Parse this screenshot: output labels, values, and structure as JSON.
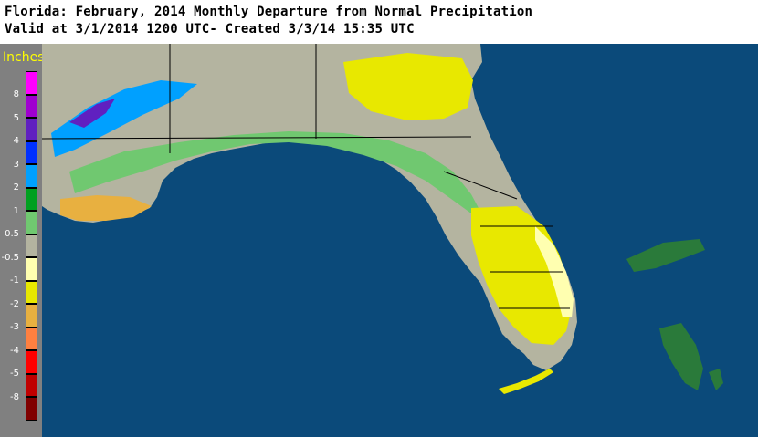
{
  "header": {
    "title": "Florida: February, 2014 Monthly Departure from Normal Precipitation",
    "subtitle": "Valid at 3/1/2014 1200 UTC- Created 3/3/14 15:35 UTC"
  },
  "legend": {
    "title": "Inches",
    "bins": [
      {
        "label": "8",
        "color": "#ff00ff"
      },
      {
        "label": "5",
        "color": "#a000d0"
      },
      {
        "label": "4",
        "color": "#6020c0"
      },
      {
        "label": "3",
        "color": "#0030ff"
      },
      {
        "label": "2",
        "color": "#00a0ff"
      },
      {
        "label": "1",
        "color": "#00a020"
      },
      {
        "label": "0.5",
        "color": "#70c870"
      },
      {
        "label": "-0.5",
        "color": "#b4b4a0"
      },
      {
        "label": "-1",
        "color": "#ffffb0"
      },
      {
        "label": "-2",
        "color": "#e8e800"
      },
      {
        "label": "-3",
        "color": "#e8b040"
      },
      {
        "label": "-4",
        "color": "#ff8040"
      },
      {
        "label": "-5",
        "color": "#ff0000"
      },
      {
        "label": "-8",
        "color": "#c00000"
      },
      {
        "label": "",
        "color": "#800000"
      }
    ]
  },
  "map": {
    "water_color": "#0b4a7a",
    "land_gray": "#b4b4a0",
    "land_green": "#70c870",
    "land_dark_green": "#00a020",
    "land_yellow": "#e8e800",
    "land_light_yellow": "#ffffb0",
    "land_orange": "#e8b040",
    "land_blue": "#00a0ff",
    "land_purple": "#6020c0",
    "bahamas_color": "#2a7a3a"
  }
}
